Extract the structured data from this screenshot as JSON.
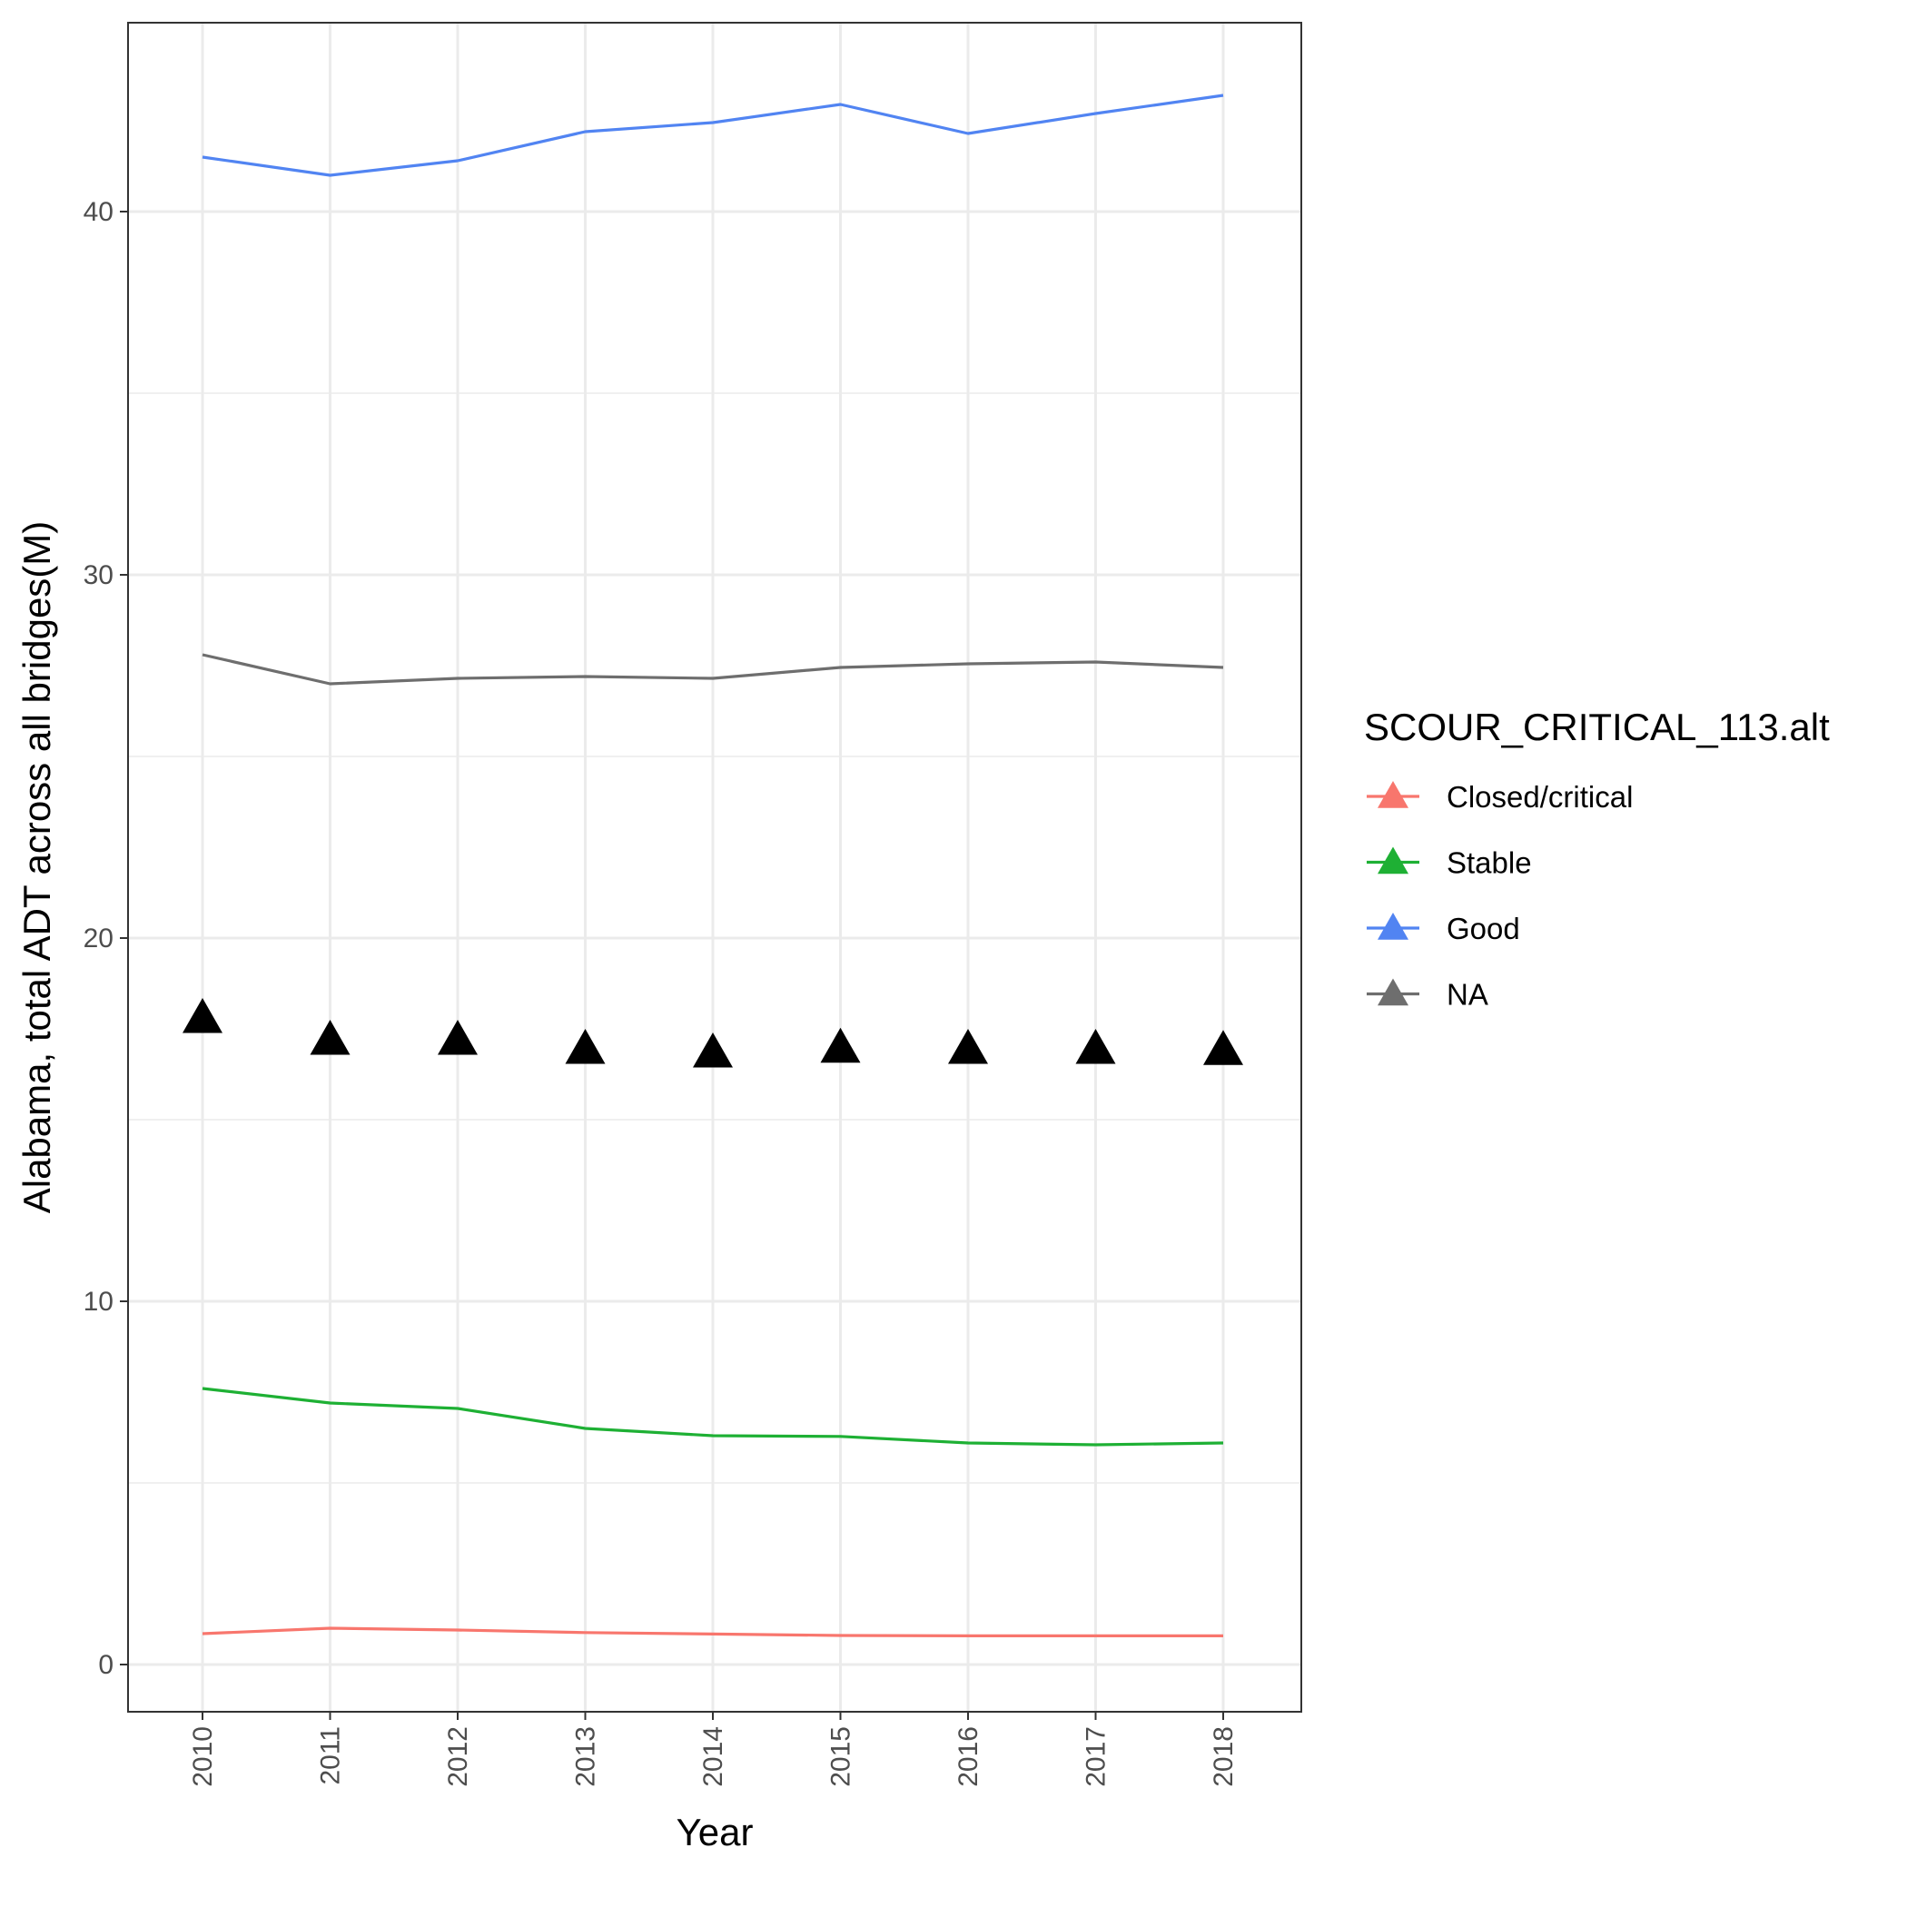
{
  "chart_data": {
    "type": "line",
    "xlabel": "Year",
    "ylabel": "Alabama, total ADT across all bridges(M)",
    "x": [
      "2010",
      "2011",
      "2012",
      "2013",
      "2014",
      "2015",
      "2016",
      "2017",
      "2018"
    ],
    "ylim": [
      -1.3,
      45.2
    ],
    "yticks": [
      "0",
      "10",
      "20",
      "30",
      "40"
    ],
    "grid": true,
    "legend": {
      "title": "SCOUR_CRITICAL_113.alt",
      "position": "right"
    },
    "series": [
      {
        "name": "Closed/critical",
        "color": "#f8766d",
        "values": [
          0.85,
          1.0,
          0.95,
          0.88,
          0.84,
          0.8,
          0.79,
          0.79,
          0.79
        ]
      },
      {
        "name": "Stable",
        "color": "#1eb034",
        "values": [
          7.6,
          7.2,
          7.05,
          6.5,
          6.3,
          6.28,
          6.1,
          6.05,
          6.1
        ]
      },
      {
        "name": "Good",
        "color": "#5184f2",
        "values": [
          41.5,
          41.0,
          41.4,
          42.2,
          42.45,
          42.95,
          42.15,
          42.7,
          43.2
        ]
      },
      {
        "name": "NA",
        "color": "#6e6e6e",
        "values": [
          27.8,
          27.0,
          27.15,
          27.2,
          27.15,
          27.45,
          27.55,
          27.6,
          27.45
        ]
      }
    ],
    "markers": {
      "shape": "triangle",
      "color": "#000000",
      "values": [
        17.8,
        17.2,
        17.2,
        16.95,
        16.85,
        16.98,
        16.95,
        16.95,
        16.92
      ]
    }
  }
}
